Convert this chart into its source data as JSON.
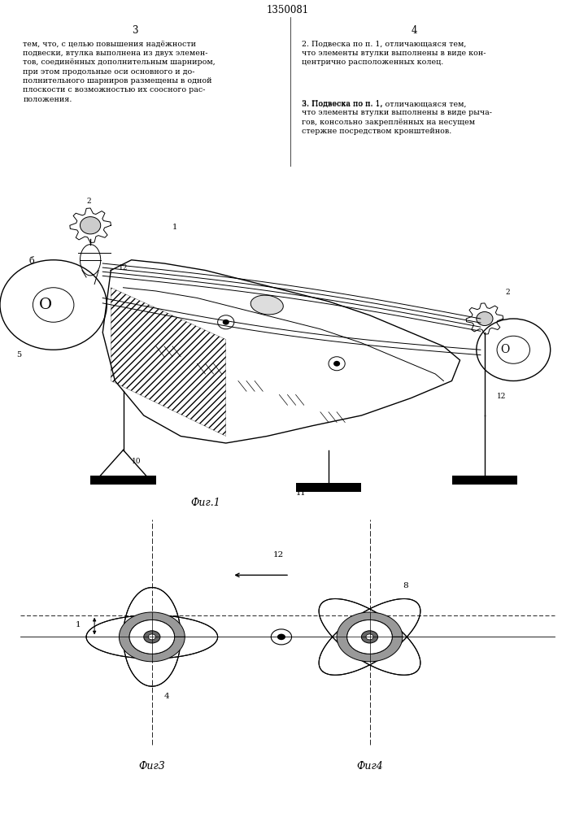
{
  "patent_number": "1350081",
  "page_left": "3",
  "page_right": "4",
  "text_left": "тем, что, с целью повышения надёжности\nподвески, втулка выполнена из двух элемен-\nтов, соединённых дополнительным шарниром,\nпри этом продольные оси основного и до-\nполнительного шарниров размещены в одной\nплоскости с возможностью их соосного рас-\nположения.",
  "text_right_1": "2. Подвеска по п. 1, отличающаяся тем,\nчто элементы втулки выполнены в виде кон-\nцентрично расположенных колец.",
  "text_right_2_prefix": "3. Подвеска по п. 1, ",
  "text_right_2_italic": "отличающаяся",
  "text_right_2_suffix": " тем,\nчто элементы втулки выполнены в виде рыча-\nгов, консольно закреплённых на несущем\nстержне посредством кронштейнов.",
  "fig1_label": "Фиг.1",
  "fig3_label": "Фиг3",
  "fig4_label": "Фиг4",
  "bg": "#ffffff",
  "lc": "#000000"
}
